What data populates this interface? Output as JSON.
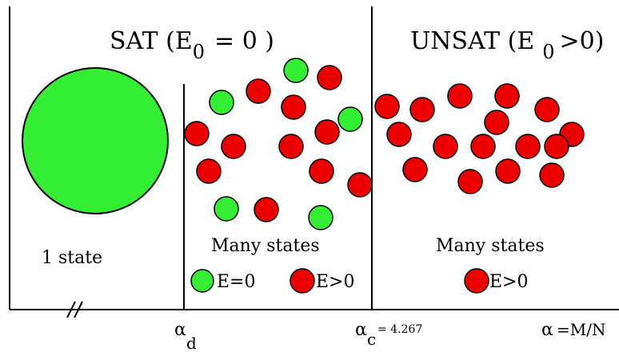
{
  "regions": {
    "sat": {
      "title_main": "SAT (E",
      "title_sub": "0",
      "title_rest": "= 0 )"
    },
    "unsat": {
      "title_main": "UNSAT (E",
      "title_sub": "0",
      "title_rest": ">0)"
    }
  },
  "labels": {
    "one_state": "1 state",
    "many_states_left": "Many states",
    "many_states_right": "Many states"
  },
  "legend": {
    "e_zero": "E=0",
    "e_pos_left": "E>0",
    "e_pos_right": "E>0"
  },
  "axis": {
    "alpha": "α",
    "alpha_d_sub": "d",
    "alpha_c_sub": "c",
    "alpha_c_value": "= 4.267",
    "alpha_def": "=M/N",
    "break_mark": "//"
  },
  "colors": {
    "green": "#33ee33",
    "red": "#ee0000",
    "outline": "#000000"
  }
}
